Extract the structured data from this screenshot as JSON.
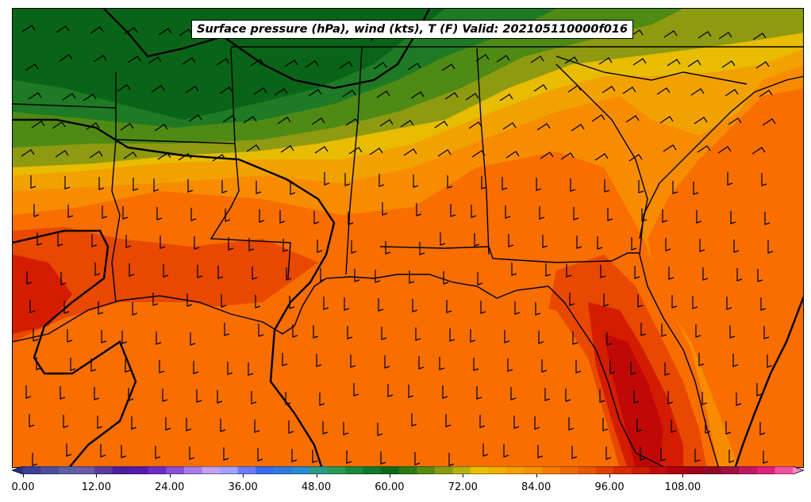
{
  "title": "Surface pressure (hPa), wind (kts), T (F) Valid: 202105110000f016",
  "colorbar": {
    "ticks": [
      "0.00",
      "12.00",
      "24.00",
      "36.00",
      "48.00",
      "60.00",
      "72.00",
      "84.00",
      "96.00",
      "108.00"
    ],
    "min": -3,
    "max": 129,
    "step": 3,
    "colors": [
      "#2b2f8a",
      "#3b3f96",
      "#4a4fa0",
      "#5a5fa8",
      "#6a5aa8",
      "#5b3aa0",
      "#4a1ea0",
      "#5a18b0",
      "#6e2cc8",
      "#8a4ed8",
      "#a87ae8",
      "#c0a0f0",
      "#a0a0ff",
      "#6a7af8",
      "#3a6af0",
      "#2e7ae0",
      "#2a8ad0",
      "#2a9a8a",
      "#2a9a5a",
      "#1a8a3a",
      "#107a2a",
      "#0a6a1a",
      "#2a7a10",
      "#5a8a10",
      "#8a9a10",
      "#b8b010",
      "#e8c000",
      "#f0b000",
      "#f8a000",
      "#f89000",
      "#f87a00",
      "#f06a00",
      "#e85800",
      "#e04000",
      "#d82a00",
      "#d01a00",
      "#c00a0a",
      "#b00010",
      "#a00018",
      "#900a28",
      "#a01040",
      "#c01860",
      "#e0207a",
      "#f050a0",
      "#f888c8"
    ]
  },
  "map_fills": {
    "dark_green": "#0a6418",
    "green": "#1e7a24",
    "olive_green": "#4f8a14",
    "olive": "#8e9a10",
    "yellow": "#e8bc00",
    "gold": "#f2a200",
    "orange": "#f88c00",
    "dark_orange": "#f86e00",
    "red_orange": "#e84800",
    "red": "#d41c00",
    "dark_red": "#c00808"
  }
}
